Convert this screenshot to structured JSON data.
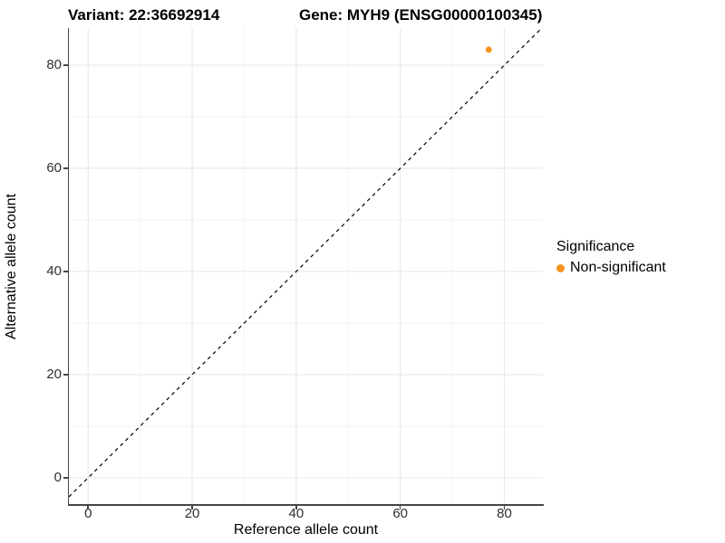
{
  "title": {
    "variant": "Variant: 22:36692914",
    "gene": "Gene: MYH9 (ENSG00000100345)"
  },
  "axes": {
    "x": {
      "label": "Reference allele count"
    },
    "y": {
      "label": "Alternative allele count"
    }
  },
  "legend": {
    "title": "Significance",
    "entries": [
      {
        "label": "Non-significant",
        "color": "#F79420"
      }
    ]
  },
  "colors": {
    "background": "#FFFFFF",
    "axis_line": "#464646",
    "tick_text": "#303030",
    "grid_major": "#EAEAEA",
    "grid_minor": "#F3F3F3",
    "identity_line": "#000000",
    "point": "#F79420"
  },
  "chart_data": {
    "type": "scatter",
    "title": "Variant: 22:36692914    Gene: MYH9 (ENSG00000100345)",
    "xlabel": "Reference allele count",
    "ylabel": "Alternative allele count",
    "xlim": [
      -3.7,
      87.4
    ],
    "ylim": [
      -5.1,
      87.2
    ],
    "x_ticks": [
      0,
      20,
      40,
      60,
      80
    ],
    "y_ticks": [
      0,
      20,
      40,
      60,
      80
    ],
    "x_minor": [
      10,
      30,
      50,
      70
    ],
    "y_minor": [
      10,
      30,
      50,
      70
    ],
    "grid": "major+minor",
    "legend_position": "right",
    "series": [
      {
        "name": "Non-significant",
        "color": "#F79420",
        "points": [
          {
            "x": 77,
            "y": 83
          }
        ]
      }
    ],
    "reference_line": {
      "type": "identity",
      "style": "dashed",
      "color": "#000000",
      "dash": "4 4"
    }
  }
}
